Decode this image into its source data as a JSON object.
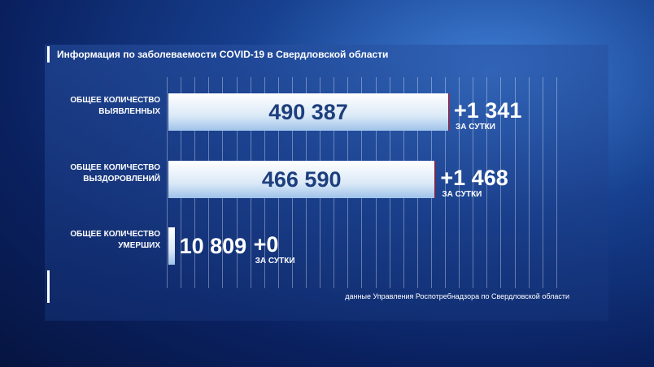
{
  "chart_data": {
    "type": "bar",
    "title": "Информация по заболеваемости COVID-19 в Свердловской области",
    "categories": [
      "ОБЩЕЕ КОЛИЧЕСТВО ВЫЯВЛЕННЫХ",
      "ОБЩЕЕ КОЛИЧЕСТВО ВЫЗДОРОВЛЕНИЙ",
      "ОБЩЕЕ КОЛИЧЕСТВО УМЕРШИХ"
    ],
    "series": [
      {
        "color": "#dbe9f7",
        "values": [
          490387,
          466590,
          10809
        ],
        "value_labels": [
          "490 387",
          "466 590",
          "10 809"
        ]
      },
      {
        "color": "#d10a0a",
        "values": [
          1341,
          1468,
          0
        ],
        "value_labels": [
          "+1 341",
          "+1 468",
          "+0"
        ]
      }
    ],
    "daily_label": "ЗА СУТКИ",
    "source": "данные Управления Роспотребнадзора по Свердловской области"
  }
}
